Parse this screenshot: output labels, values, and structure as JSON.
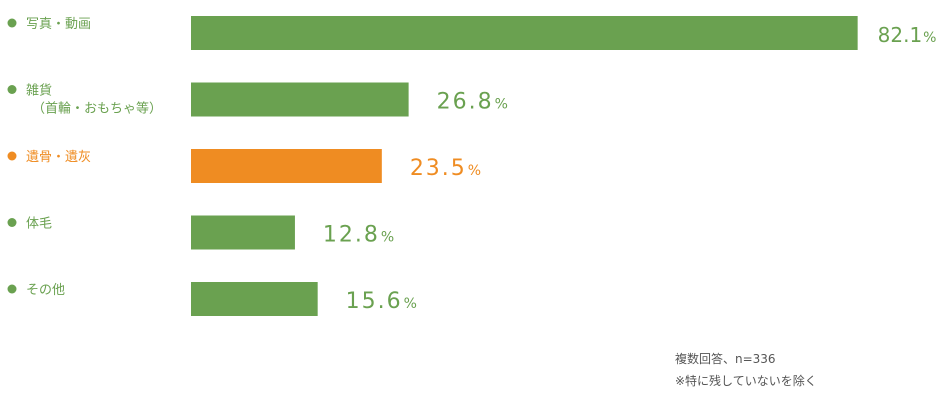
{
  "chart_data": {
    "type": "bar",
    "orientation": "horizontal",
    "categories": [
      [
        "写真・動画"
      ],
      [
        "雑貨",
        "（首輪・おもちゃ等）"
      ],
      [
        "遺骨・遺灰"
      ],
      [
        "体毛"
      ],
      [
        "その他"
      ]
    ],
    "values": [
      82.1,
      26.8,
      23.5,
      12.8,
      15.6
    ],
    "value_labels": [
      "82.1",
      "26.8",
      "23.5",
      "12.8",
      "15.6"
    ],
    "unit": "%",
    "highlight_index": 2,
    "xlim": [
      0,
      100
    ],
    "grid": false,
    "legend": "none"
  },
  "colors": {
    "default": "#6aa150",
    "highlight": "#ef8c22"
  },
  "notes": {
    "line1": "複数回答、n=336",
    "line2": "※特に残していないを除く"
  }
}
